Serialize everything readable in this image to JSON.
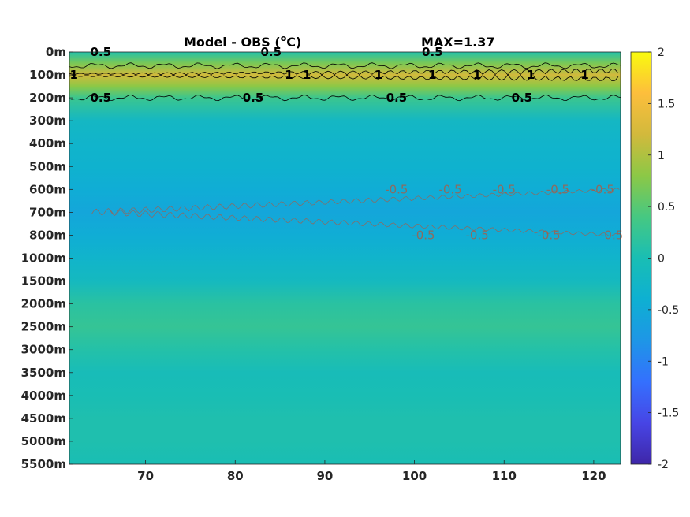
{
  "chart_data": {
    "type": "heatmap",
    "title": "Model - OBS (",
    "title_unit_sup": "o",
    "title_unit_end": "C)",
    "max_label": "MAX=1.37",
    "x_ticks": [
      70,
      80,
      90,
      100,
      110,
      120
    ],
    "xlim": [
      61.5,
      123
    ],
    "y_tick_labels": [
      "0m",
      "100m",
      "200m",
      "300m",
      "400m",
      "500m",
      "600m",
      "700m",
      "800m",
      "1000m",
      "1500m",
      "2000m",
      "2500m",
      "3000m",
      "3500m",
      "4000m",
      "4500m",
      "5000m",
      "5500m"
    ],
    "colorbar": {
      "ticks": [
        2,
        1.5,
        1,
        0.5,
        0,
        -0.5,
        -1,
        -1.5,
        -2
      ],
      "range": [
        -2,
        2
      ],
      "colormap": "parula"
    },
    "depth_profile": [
      {
        "depth": "0m",
        "value": 0.1
      },
      {
        "depth": "50m",
        "value": 0.7
      },
      {
        "depth": "100m",
        "value": 1.2
      },
      {
        "depth": "150m",
        "value": 0.8
      },
      {
        "depth": "200m",
        "value": 0.3
      },
      {
        "depth": "300m",
        "value": -0.2
      },
      {
        "depth": "400m",
        "value": -0.3
      },
      {
        "depth": "500m",
        "value": -0.35
      },
      {
        "depth": "600m",
        "value": -0.45
      },
      {
        "depth": "700m",
        "value": -0.55
      },
      {
        "depth": "800m",
        "value": -0.45
      },
      {
        "depth": "1000m",
        "value": -0.3
      },
      {
        "depth": "1500m",
        "value": -0.15
      },
      {
        "depth": "2000m",
        "value": 0.15
      },
      {
        "depth": "2500m",
        "value": 0.25
      },
      {
        "depth": "3000m",
        "value": 0.1
      },
      {
        "depth": "3500m",
        "value": -0.05
      },
      {
        "depth": "4000m",
        "value": 0.0
      },
      {
        "depth": "4500m",
        "value": 0.05
      },
      {
        "depth": "5000m",
        "value": 0.05
      },
      {
        "depth": "5500m",
        "value": 0.0
      }
    ],
    "contour_labels_positive": [
      {
        "text": "0.5",
        "x": 65,
        "depth": "0m"
      },
      {
        "text": "0.5",
        "x": 84,
        "depth": "0m"
      },
      {
        "text": "0.5",
        "x": 102,
        "depth": "0m"
      },
      {
        "text": "1",
        "x": 62,
        "depth": "100m"
      },
      {
        "text": "1",
        "x": 86,
        "depth": "100m"
      },
      {
        "text": "1",
        "x": 88,
        "depth": "100m"
      },
      {
        "text": "1",
        "x": 96,
        "depth": "100m"
      },
      {
        "text": "1",
        "x": 102,
        "depth": "100m"
      },
      {
        "text": "1",
        "x": 107,
        "depth": "100m"
      },
      {
        "text": "1",
        "x": 113,
        "depth": "100m"
      },
      {
        "text": "1",
        "x": 119,
        "depth": "100m"
      },
      {
        "text": "0.5",
        "x": 65,
        "depth": "200m"
      },
      {
        "text": "0.5",
        "x": 82,
        "depth": "200m"
      },
      {
        "text": "0.5",
        "x": 98,
        "depth": "200m"
      },
      {
        "text": "0.5",
        "x": 112,
        "depth": "200m"
      }
    ],
    "contour_labels_negative": [
      {
        "text": "-0.5",
        "x": 98,
        "depth": "600m"
      },
      {
        "text": "-0.5",
        "x": 104,
        "depth": "600m"
      },
      {
        "text": "-0.5",
        "x": 110,
        "depth": "600m"
      },
      {
        "text": "-0.5",
        "x": 116,
        "depth": "600m"
      },
      {
        "text": "-0.5",
        "x": 121,
        "depth": "600m"
      },
      {
        "text": "-0.5",
        "x": 101,
        "depth": "800m"
      },
      {
        "text": "-0.5",
        "x": 107,
        "depth": "800m"
      },
      {
        "text": "-0.5",
        "x": 115,
        "depth": "800m"
      },
      {
        "text": "-0.5",
        "x": 122,
        "depth": "800m"
      }
    ]
  }
}
